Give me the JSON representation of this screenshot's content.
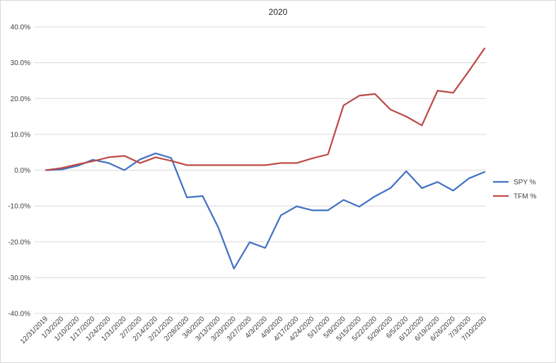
{
  "chart_data": {
    "type": "line",
    "title": "2020",
    "xlabel": "",
    "ylabel": "",
    "ylim": [
      -40,
      40
    ],
    "y_tick_step": 10,
    "y_tick_format": "percent_1dp",
    "grid": "horizontal",
    "legend_position": "right",
    "x": [
      "12/31/2019",
      "1/3/2020",
      "1/10/2020",
      "1/17/2020",
      "1/24/2020",
      "1/31/2020",
      "2/7/2020",
      "2/14/2020",
      "2/21/2020",
      "2/28/2020",
      "3/6/2020",
      "3/13/2020",
      "3/20/2020",
      "3/27/2020",
      "4/3/2020",
      "4/9/2020",
      "4/17/2020",
      "4/24/2020",
      "5/1/2020",
      "5/8/2020",
      "5/15/2020",
      "5/22/2020",
      "5/29/2020",
      "6/5/2020",
      "6/12/2020",
      "6/19/2020",
      "6/26/2020",
      "7/3/2020",
      "7/10/2020"
    ],
    "series": [
      {
        "name": "SPY %",
        "color": "#4472c4",
        "values": [
          0,
          0.2,
          1.2,
          2.9,
          2.0,
          0,
          3.0,
          4.7,
          3.4,
          -7.6,
          -7.2,
          -16.0,
          -27.5,
          -20.1,
          -21.7,
          -12.6,
          -10.1,
          -11.2,
          -11.2,
          -8.3,
          -10.2,
          -7.3,
          -5.0,
          -0.3,
          -5.0,
          -3.3,
          -5.7,
          -2.3,
          -0.5
        ]
      },
      {
        "name": "TFM %",
        "color": "#be4b48",
        "values": [
          0,
          0.6,
          1.6,
          2.5,
          3.6,
          4.0,
          2.0,
          3.6,
          2.6,
          1.4,
          1.4,
          1.4,
          1.4,
          1.4,
          1.4,
          2.0,
          2.0,
          3.3,
          4.4,
          18.1,
          20.8,
          21.3,
          16.9,
          15.0,
          12.5,
          22.2,
          21.6,
          27.7,
          34.0
        ]
      }
    ]
  }
}
